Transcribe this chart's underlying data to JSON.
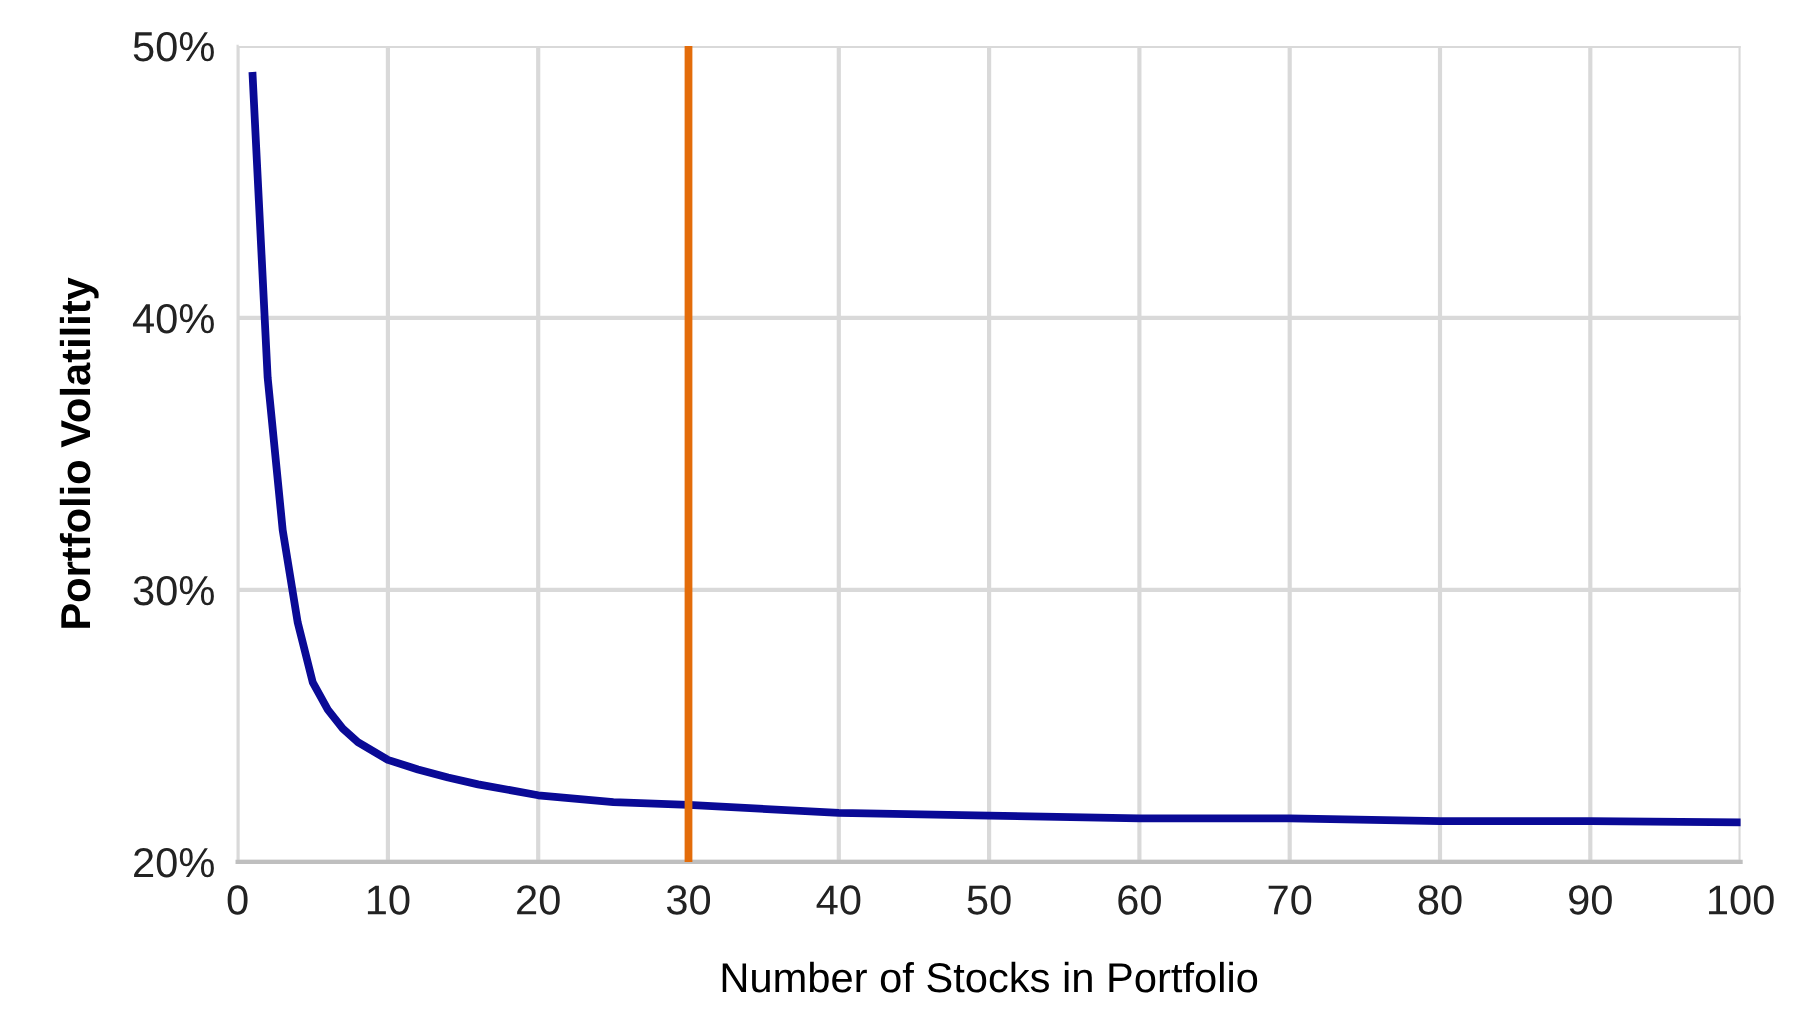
{
  "chart_data": {
    "type": "line",
    "xlabel": "Number of Stocks in Portfolio",
    "ylabel": "Portfolio Volatility",
    "x": [
      1,
      2,
      3,
      4,
      5,
      6,
      7,
      8,
      10,
      12,
      14,
      16,
      20,
      25,
      30,
      40,
      50,
      60,
      70,
      80,
      90,
      100
    ],
    "series": [
      {
        "color": "#0a0a96",
        "values": [
          48.9,
          37.8,
          32.2,
          28.8,
          26.6,
          25.6,
          24.9,
          24.4,
          23.75,
          23.4,
          23.1,
          22.85,
          22.45,
          22.2,
          22.1,
          21.8,
          21.7,
          21.6,
          21.6,
          21.5,
          21.5,
          21.45
        ]
      }
    ],
    "xlim": [
      0,
      100
    ],
    "xticks": [
      0,
      10,
      20,
      30,
      40,
      50,
      60,
      70,
      80,
      90,
      100
    ],
    "ylim": [
      20,
      50
    ],
    "yticks": [
      {
        "value": 20,
        "label": "20%"
      },
      {
        "value": 30,
        "label": "30%"
      },
      {
        "value": 40,
        "label": "40%"
      },
      {
        "value": 50,
        "label": "50%"
      }
    ],
    "ref_lines": [
      {
        "axis": "x",
        "value": 30,
        "color": "#e36c0a"
      }
    ],
    "grid": true,
    "legend": false,
    "marker": "none",
    "line_style": "solid"
  }
}
